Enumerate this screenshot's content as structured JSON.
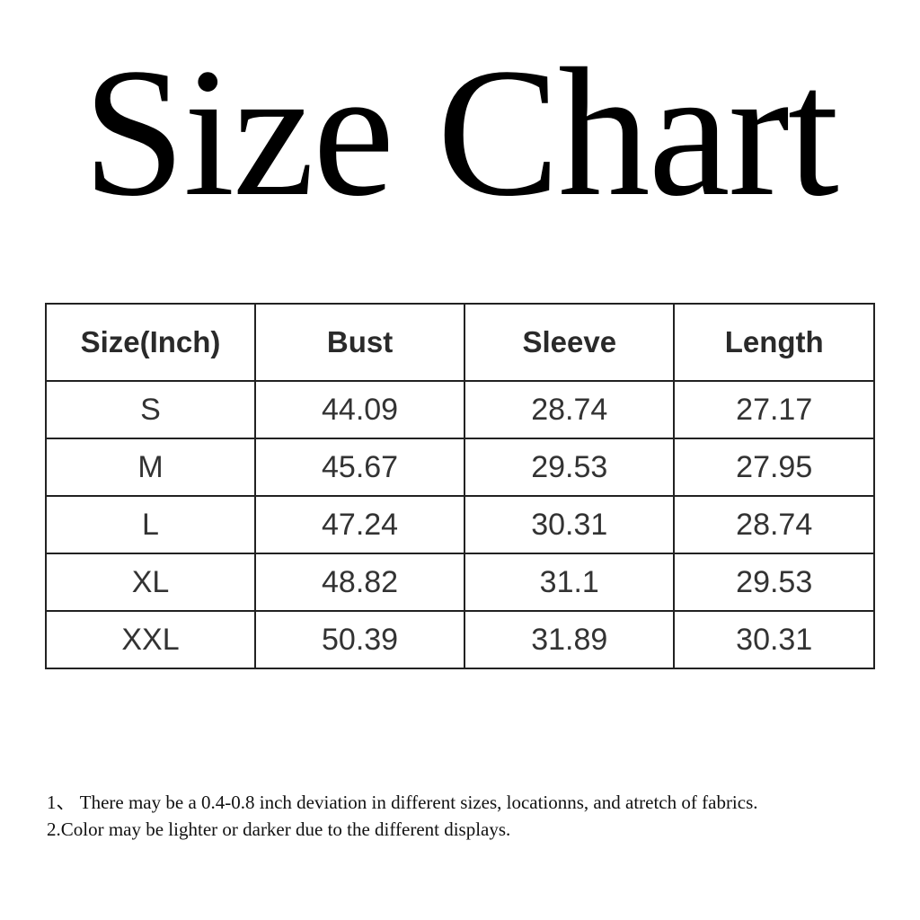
{
  "title": "Size Chart",
  "table": {
    "headers": [
      "Size(Inch)",
      "Bust",
      "Sleeve",
      "Length"
    ],
    "rows": [
      [
        "S",
        "44.09",
        "28.74",
        "27.17"
      ],
      [
        "M",
        "45.67",
        "29.53",
        "27.95"
      ],
      [
        "L",
        "47.24",
        "30.31",
        "28.74"
      ],
      [
        "XL",
        "48.82",
        "31.1",
        "29.53"
      ],
      [
        "XXL",
        "50.39",
        "31.89",
        "30.31"
      ]
    ]
  },
  "notes": [
    "1、 There may be a 0.4-0.8 inch deviation in different sizes, locationns, and atretch of fabrics.",
    "2.Color may be lighter or darker due to the different displays."
  ]
}
